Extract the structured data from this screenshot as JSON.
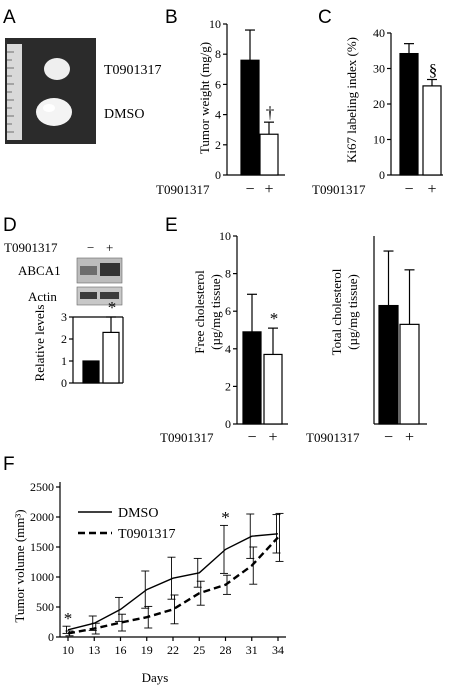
{
  "panel_letters": [
    "A",
    "B",
    "C",
    "D",
    "E",
    "F"
  ],
  "treatment_label": "T0901317",
  "minus_sign": "−",
  "plus_sign": "+",
  "colors": {
    "control": "#000000",
    "treated": "#ffffff",
    "photo_bg": "#2a2a2a"
  },
  "panel_a": {
    "treated_label": "T0901317",
    "control_label": "DMSO"
  },
  "panel_d": {
    "blot_labels": [
      "ABCA1",
      "Actin"
    ]
  },
  "chart_data": [
    {
      "id": "B",
      "type": "bar",
      "categories": [
        "−",
        "+"
      ],
      "values": [
        7.6,
        2.7
      ],
      "errors": [
        2.0,
        0.8
      ],
      "ylabel": "Tumor weight (mg/g)",
      "ylim": [
        0,
        10
      ],
      "yticks": [
        0,
        2,
        4,
        6,
        8,
        10
      ],
      "annotations": [
        "",
        "†"
      ]
    },
    {
      "id": "C",
      "type": "bar",
      "categories": [
        "−",
        "+"
      ],
      "values": [
        34.2,
        25.1
      ],
      "errors": [
        2.8,
        1.8
      ],
      "ylabel": "Ki67 labeling index (%)",
      "ylim": [
        0,
        40
      ],
      "yticks": [
        0,
        10,
        20,
        30,
        40
      ],
      "annotations": [
        "",
        "§"
      ]
    },
    {
      "id": "D",
      "type": "bar",
      "categories": [
        "−",
        "+"
      ],
      "values": [
        1.0,
        2.3
      ],
      "errors": [
        0,
        0.7
      ],
      "ylabel": "Relative levels",
      "ylim": [
        0,
        3
      ],
      "yticks": [
        0,
        1,
        2,
        3
      ],
      "annotations": [
        "",
        "*"
      ]
    },
    {
      "id": "E1",
      "type": "bar",
      "categories": [
        "−",
        "+"
      ],
      "values": [
        4.9,
        3.7
      ],
      "errors": [
        2.0,
        1.4
      ],
      "ylabel": "Free cholesterol (µg/mg tissue)",
      "ylim": [
        0,
        10
      ],
      "yticks": [
        0,
        2,
        4,
        6,
        8,
        10
      ],
      "annotations": [
        "",
        "*"
      ]
    },
    {
      "id": "E2",
      "type": "bar",
      "categories": [
        "−",
        "+"
      ],
      "values": [
        6.3,
        5.3
      ],
      "errors": [
        2.9,
        2.9
      ],
      "ylabel": "Total cholesterol (µg/mg tissue)",
      "ylim": [
        0,
        10
      ],
      "yticks": [],
      "annotations": [
        "",
        ""
      ]
    },
    {
      "id": "F",
      "type": "line",
      "x": [
        10,
        13,
        16,
        19,
        22,
        25,
        28,
        31,
        34
      ],
      "xlabel": "Days",
      "ylabel": "Tumor volume (mm³)",
      "ylim": [
        0,
        2500
      ],
      "yticks": [
        0,
        500,
        1000,
        1500,
        2000,
        2500
      ],
      "series": [
        {
          "name": "DMSO",
          "style": "solid",
          "values": [
            120,
            230,
            460,
            790,
            980,
            1070,
            1460,
            1680,
            1720
          ],
          "errors": [
            60,
            120,
            200,
            310,
            350,
            240,
            400,
            370,
            320
          ]
        },
        {
          "name": "T0901317",
          "style": "dashed",
          "values": [
            60,
            140,
            240,
            330,
            460,
            730,
            870,
            1190,
            1660
          ],
          "errors": [
            40,
            90,
            140,
            180,
            240,
            200,
            160,
            310,
            400
          ]
        }
      ],
      "annotations": [
        {
          "x": 10,
          "text": "*"
        },
        {
          "x": 28,
          "text": "*"
        }
      ]
    }
  ]
}
